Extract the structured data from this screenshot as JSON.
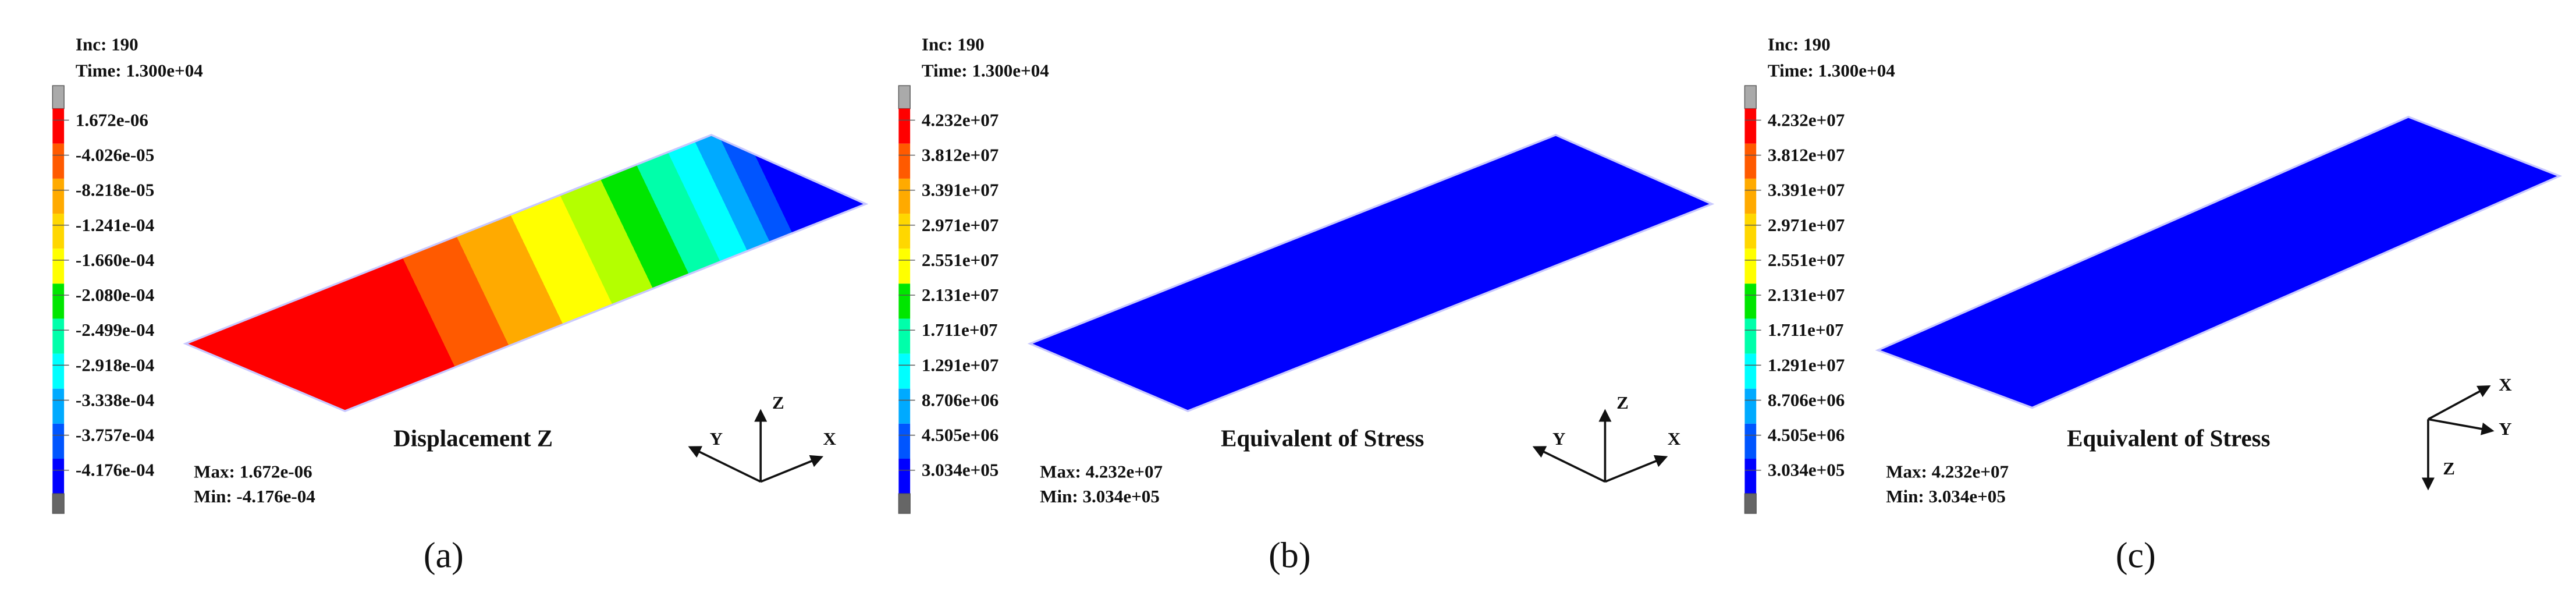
{
  "panels": [
    {
      "inc": "Inc: 190",
      "time": "Time: 1.300e+04",
      "legend": [
        "1.672e-06",
        "-4.026e-05",
        "-8.218e-05",
        "-1.241e-04",
        "-1.660e-04",
        "-2.080e-04",
        "-2.499e-04",
        "-2.918e-04",
        "-3.338e-04",
        "-3.757e-04",
        "-4.176e-04"
      ],
      "title": "Displacement Z",
      "max": "Max: 1.672e-06",
      "min": "Min: -4.176e-04",
      "axes": {
        "x": "X",
        "y": "Y",
        "z": "Z"
      },
      "caption": "(a)"
    },
    {
      "inc": "Inc: 190",
      "time": "Time: 1.300e+04",
      "legend": [
        "4.232e+07",
        "3.812e+07",
        "3.391e+07",
        "2.971e+07",
        "2.551e+07",
        "2.131e+07",
        "1.711e+07",
        "1.291e+07",
        "8.706e+06",
        "4.505e+06",
        "3.034e+05"
      ],
      "title": "Equivalent of Stress",
      "max": "Max: 4.232e+07",
      "min": "Min: 3.034e+05",
      "axes": {
        "x": "X",
        "y": "Y",
        "z": "Z"
      },
      "caption": "(b)"
    },
    {
      "inc": "Inc: 190",
      "time": "Time: 1.300e+04",
      "legend": [
        "4.232e+07",
        "3.812e+07",
        "3.391e+07",
        "2.971e+07",
        "2.551e+07",
        "2.131e+07",
        "1.711e+07",
        "1.291e+07",
        "8.706e+06",
        "4.505e+06",
        "3.034e+05"
      ],
      "title": "Equivalent of Stress",
      "max": "Max: 4.232e+07",
      "min": "Min: 3.034e+05",
      "axes": {
        "x": "X",
        "y": "Y",
        "z": "Z"
      },
      "caption": "(c)"
    }
  ]
}
